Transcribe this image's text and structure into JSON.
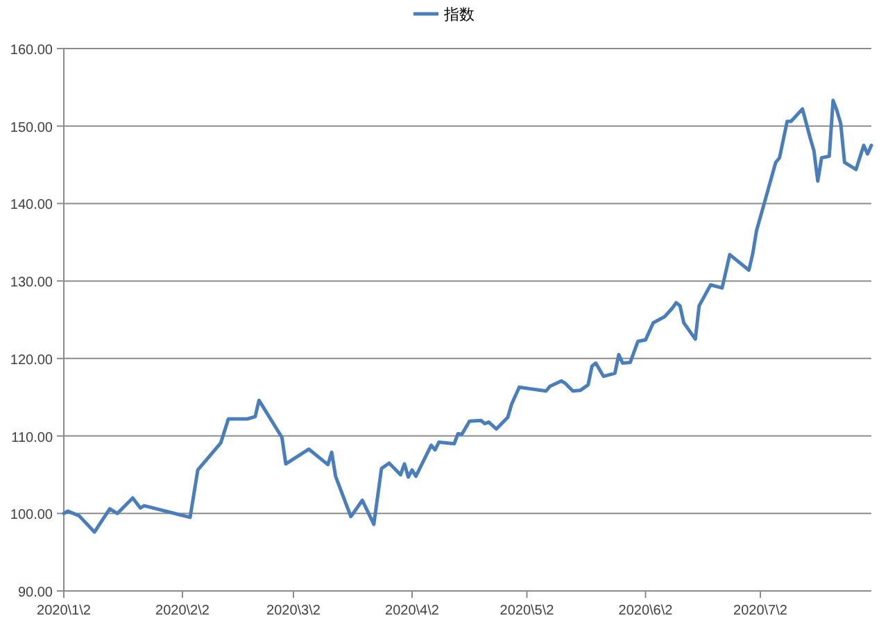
{
  "chart_data": {
    "type": "line",
    "legend": "top",
    "grid": "y",
    "marker": "none",
    "line_style": "solid",
    "xlim": [
      "2020-01-02",
      "2020-07-31"
    ],
    "ylim": [
      90,
      160
    ],
    "yticks": [
      {
        "value": 90,
        "label": "90.00"
      },
      {
        "value": 100,
        "label": "100.00"
      },
      {
        "value": 110,
        "label": "110.00"
      },
      {
        "value": 120,
        "label": "120.00"
      },
      {
        "value": 130,
        "label": "130.00"
      },
      {
        "value": 140,
        "label": "140.00"
      },
      {
        "value": 150,
        "label": "150.00"
      },
      {
        "value": 160,
        "label": "160.00"
      }
    ],
    "xticks": [
      {
        "value": "2020-01-02",
        "label": "2020\\1\\2"
      },
      {
        "value": "2020-02-02",
        "label": "2020\\2\\2"
      },
      {
        "value": "2020-03-02",
        "label": "2020\\3\\2"
      },
      {
        "value": "2020-04-02",
        "label": "2020\\4\\2"
      },
      {
        "value": "2020-05-02",
        "label": "2020\\5\\2"
      },
      {
        "value": "2020-06-02",
        "label": "2020\\6\\2"
      },
      {
        "value": "2020-07-02",
        "label": "2020\\7\\2"
      }
    ],
    "x": [
      "2020-01-02",
      "2020-01-03",
      "2020-01-06",
      "2020-01-10",
      "2020-01-14",
      "2020-01-16",
      "2020-01-20",
      "2020-01-22",
      "2020-01-23",
      "2020-02-04",
      "2020-02-06",
      "2020-02-12",
      "2020-02-14",
      "2020-02-19",
      "2020-02-21",
      "2020-02-22",
      "2020-02-28",
      "2020-02-29",
      "2020-03-06",
      "2020-03-11",
      "2020-03-12",
      "2020-03-13",
      "2020-03-17",
      "2020-03-20",
      "2020-03-23",
      "2020-03-25",
      "2020-03-27",
      "2020-03-30",
      "2020-03-31",
      "2020-04-01",
      "2020-04-02",
      "2020-04-03",
      "2020-04-07",
      "2020-04-08",
      "2020-04-09",
      "2020-04-13",
      "2020-04-14",
      "2020-04-15",
      "2020-04-17",
      "2020-04-20",
      "2020-04-21",
      "2020-04-22",
      "2020-04-24",
      "2020-04-27",
      "2020-04-28",
      "2020-04-30",
      "2020-05-07",
      "2020-05-08",
      "2020-05-11",
      "2020-05-12",
      "2020-05-14",
      "2020-05-16",
      "2020-05-18",
      "2020-05-19",
      "2020-05-20",
      "2020-05-22",
      "2020-05-25",
      "2020-05-26",
      "2020-05-27",
      "2020-05-29",
      "2020-05-31",
      "2020-06-02",
      "2020-06-04",
      "2020-06-07",
      "2020-06-09",
      "2020-06-10",
      "2020-06-11",
      "2020-06-12",
      "2020-06-15",
      "2020-06-16",
      "2020-06-19",
      "2020-06-22",
      "2020-06-24",
      "2020-06-29",
      "2020-06-30",
      "2020-07-01",
      "2020-07-03",
      "2020-07-06",
      "2020-07-07",
      "2020-07-09",
      "2020-07-10",
      "2020-07-13",
      "2020-07-15",
      "2020-07-16",
      "2020-07-17",
      "2020-07-18",
      "2020-07-20",
      "2020-07-21",
      "2020-07-22",
      "2020-07-23",
      "2020-07-24",
      "2020-07-27",
      "2020-07-29",
      "2020-07-30",
      "2020-07-31"
    ],
    "series": [
      {
        "name": "指数",
        "color": "#4a7ebb",
        "values": [
          100.0,
          100.3,
          99.7,
          97.6,
          100.6,
          100.0,
          102.0,
          100.7,
          101.0,
          99.5,
          105.6,
          109.1,
          112.2,
          112.2,
          112.5,
          114.6,
          109.8,
          106.4,
          108.3,
          106.3,
          107.9,
          104.8,
          99.6,
          101.7,
          98.6,
          105.8,
          106.5,
          105.0,
          106.4,
          104.7,
          105.6,
          104.8,
          108.8,
          108.2,
          109.2,
          109.0,
          110.3,
          110.2,
          111.9,
          112.0,
          111.6,
          111.8,
          110.9,
          112.4,
          114.1,
          116.3,
          115.8,
          116.4,
          117.1,
          116.8,
          115.8,
          115.9,
          116.6,
          119.0,
          119.4,
          117.7,
          118.1,
          120.5,
          119.4,
          119.5,
          122.2,
          122.4,
          124.6,
          125.4,
          126.5,
          127.2,
          126.8,
          124.6,
          122.5,
          126.8,
          129.5,
          129.1,
          133.4,
          131.4,
          133.5,
          136.5,
          140.0,
          145.3,
          145.9,
          150.6,
          150.6,
          152.2,
          148.5,
          146.8,
          142.9,
          145.9,
          146.1,
          153.3,
          152.0,
          150.3,
          145.3,
          144.4,
          147.5,
          146.4,
          147.5
        ]
      }
    ]
  }
}
